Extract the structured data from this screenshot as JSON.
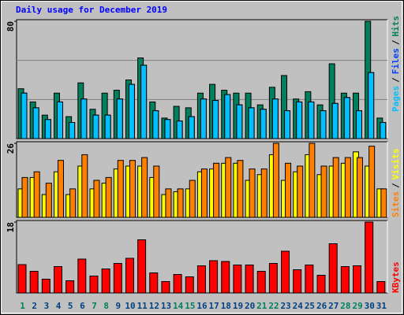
{
  "chart_data": [
    {
      "type": "bar",
      "title": "Daily usage for December 2019",
      "ylim": [
        0,
        80
      ],
      "yticks": [
        80
      ],
      "legend_separator": "/",
      "series": [
        {
          "name": "Hits",
          "color": "#00805c",
          "values": [
            34,
            25,
            16,
            31,
            15,
            38,
            20,
            31,
            33,
            40,
            55,
            25,
            14,
            22,
            21,
            31,
            37,
            33,
            31,
            31,
            23,
            35,
            43,
            27,
            32,
            23,
            51,
            31,
            31,
            80,
            14
          ]
        },
        {
          "name": "Files",
          "color": "#0040ff",
          "values": [
            31,
            21,
            13,
            25,
            11,
            27,
            16,
            16,
            27,
            37,
            50,
            19,
            13,
            12,
            15,
            27,
            26,
            30,
            23,
            21,
            20,
            27,
            19,
            25,
            25,
            19,
            24,
            28,
            19,
            45,
            11
          ]
        },
        {
          "name": "Pages",
          "color": "#00c0ff",
          "values": [
            31,
            21,
            13,
            25,
            11,
            27,
            16,
            16,
            27,
            37,
            50,
            19,
            13,
            12,
            15,
            27,
            26,
            30,
            23,
            21,
            20,
            27,
            19,
            25,
            25,
            19,
            24,
            28,
            19,
            45,
            11
          ]
        }
      ]
    },
    {
      "type": "bar",
      "ylim": [
        0,
        26
      ],
      "yticks": [
        26
      ],
      "legend_separator": "/",
      "series": [
        {
          "name": "Visits",
          "color": "#ffff00",
          "values": [
            10,
            14,
            8,
            16,
            8,
            18,
            10,
            12,
            17,
            18,
            18,
            14,
            8,
            9,
            10,
            16,
            17,
            19,
            19,
            13,
            15,
            22,
            13,
            16,
            22,
            15,
            18,
            19,
            23,
            18,
            10
          ]
        },
        {
          "name": "Sites",
          "color": "#ff8000",
          "values": [
            14,
            16,
            12,
            20,
            10,
            22,
            13,
            14,
            20,
            20,
            21,
            18,
            10,
            10,
            13,
            17,
            19,
            21,
            20,
            17,
            17,
            26,
            19,
            18,
            26,
            18,
            21,
            21,
            21,
            25,
            10
          ]
        }
      ]
    },
    {
      "type": "bar",
      "ylim": [
        0,
        18
      ],
      "yticks": [
        18
      ],
      "categories": [
        "1",
        "2",
        "3",
        "4",
        "5",
        "6",
        "7",
        "8",
        "9",
        "10",
        "11",
        "12",
        "13",
        "14",
        "15",
        "16",
        "17",
        "18",
        "19",
        "20",
        "21",
        "22",
        "23",
        "24",
        "25",
        "26",
        "27",
        "28",
        "29",
        "30",
        "31"
      ],
      "category_colors": [
        "#00805c",
        "#004080",
        "#004080",
        "#004080",
        "#004080",
        "#004080",
        "#00805c",
        "#00805c",
        "#004080",
        "#004080",
        "#004080",
        "#004080",
        "#004080",
        "#00805c",
        "#00805c",
        "#004080",
        "#004080",
        "#004080",
        "#004080",
        "#004080",
        "#00805c",
        "#00805c",
        "#004080",
        "#004080",
        "#004080",
        "#004080",
        "#004080",
        "#00805c",
        "#00805c",
        "#004080",
        "#004080"
      ],
      "series": [
        {
          "name": "KBytes",
          "color": "#ff0000",
          "values": [
            7.2,
            5.5,
            3.5,
            6.7,
            3.1,
            8.6,
            4.3,
            6.1,
            7.5,
            8.8,
            13.5,
            5.1,
            2.9,
            4.7,
            4.1,
            6.9,
            8.2,
            8,
            7.1,
            7.1,
            5.5,
            7.5,
            10.6,
            5.9,
            7.1,
            4.5,
            12.5,
            6.7,
            6.9,
            18,
            2.9
          ]
        }
      ]
    }
  ]
}
